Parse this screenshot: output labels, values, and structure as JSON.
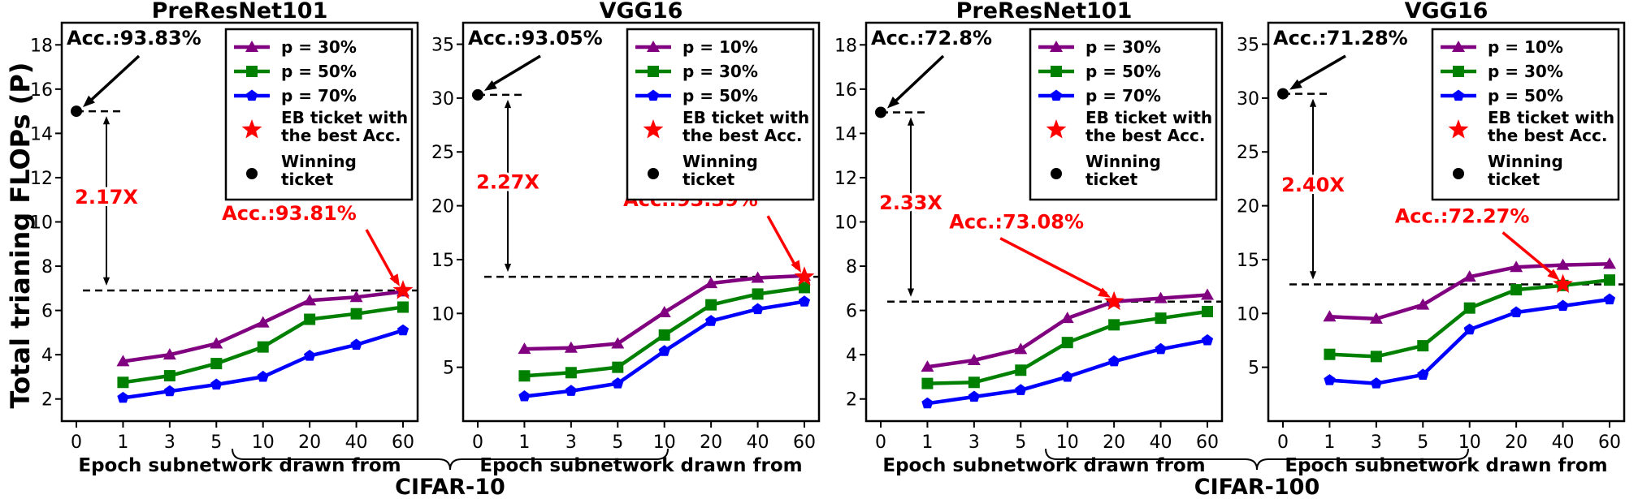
{
  "figure": {
    "ylabel": "Total trianing FLOPs (P)",
    "groups": [
      {
        "label": "CIFAR-10"
      },
      {
        "label": "CIFAR-100"
      }
    ]
  },
  "chart_data": [
    {
      "type": "line",
      "title": "PreResNet101",
      "xlabel": "Epoch subnetwork drawn from",
      "ylabel": "Total trianing FLOPs (P)",
      "categories": [
        "0",
        "1",
        "3",
        "5",
        "10",
        "20",
        "40",
        "60"
      ],
      "ylim": [
        1,
        19
      ],
      "yticks": [
        2,
        4,
        6,
        8,
        10,
        12,
        14,
        16,
        18
      ],
      "series": [
        {
          "name": "p = 30%",
          "color": "#800080",
          "marker": "triangle",
          "values": [
            null,
            3.7,
            4.0,
            4.5,
            5.45,
            6.45,
            6.6,
            6.85
          ]
        },
        {
          "name": "p = 50%",
          "color": "#008000",
          "marker": "square",
          "values": [
            null,
            2.75,
            3.05,
            3.6,
            4.35,
            5.6,
            5.85,
            6.15
          ]
        },
        {
          "name": "p = 70%",
          "color": "#0000ff",
          "marker": "pentagon",
          "values": [
            null,
            2.05,
            2.35,
            2.65,
            3.0,
            3.95,
            4.45,
            5.1
          ]
        }
      ],
      "legend_extra": [
        {
          "label": "EB ticket with the best Acc.",
          "marker": "star",
          "color": "#ff0000"
        },
        {
          "label": "Winning ticket",
          "marker": "circle",
          "color": "#000000"
        }
      ],
      "winning_ticket": {
        "x": "0",
        "y": 15.0,
        "label": "Acc.:93.83%"
      },
      "eb_ticket": {
        "x": "60",
        "y": 6.9,
        "label": "Acc.:93.81%"
      },
      "ratio_label": "2.17X",
      "legend_position": "top-right"
    },
    {
      "type": "line",
      "title": "VGG16",
      "xlabel": "Epoch subnetwork drawn from",
      "categories": [
        "0",
        "1",
        "3",
        "5",
        "10",
        "20",
        "40",
        "60"
      ],
      "ylim": [
        0,
        37
      ],
      "yticks": [
        5,
        10,
        15,
        20,
        25,
        30,
        35
      ],
      "series": [
        {
          "name": "p = 10%",
          "color": "#800080",
          "marker": "triangle",
          "values": [
            null,
            6.7,
            6.8,
            7.2,
            10.1,
            12.8,
            13.3,
            13.5
          ]
        },
        {
          "name": "p = 30%",
          "color": "#008000",
          "marker": "square",
          "values": [
            null,
            4.2,
            4.5,
            5.0,
            8.0,
            10.8,
            11.8,
            12.4
          ]
        },
        {
          "name": "p = 50%",
          "color": "#0000ff",
          "marker": "pentagon",
          "values": [
            null,
            2.3,
            2.8,
            3.5,
            6.5,
            9.3,
            10.4,
            11.1
          ]
        }
      ],
      "legend_extra": [
        {
          "label": "EB ticket with the best Acc.",
          "marker": "star",
          "color": "#ff0000"
        },
        {
          "label": "Winning ticket",
          "marker": "circle",
          "color": "#000000"
        }
      ],
      "winning_ticket": {
        "x": "0",
        "y": 30.3,
        "label": "Acc.:93.05%"
      },
      "eb_ticket": {
        "x": "60",
        "y": 13.4,
        "label": "Acc.:93.39%"
      },
      "ratio_label": "2.27X",
      "legend_position": "top-right"
    },
    {
      "type": "line",
      "title": "PreResNet101",
      "xlabel": "Epoch subnetwork drawn from",
      "categories": [
        "0",
        "1",
        "3",
        "5",
        "10",
        "20",
        "40",
        "60"
      ],
      "ylim": [
        1,
        19
      ],
      "yticks": [
        2,
        4,
        6,
        8,
        10,
        12,
        14,
        16,
        18
      ],
      "series": [
        {
          "name": "p = 30%",
          "color": "#800080",
          "marker": "triangle",
          "values": [
            null,
            3.45,
            3.75,
            4.25,
            5.65,
            6.4,
            6.55,
            6.7
          ]
        },
        {
          "name": "p = 50%",
          "color": "#008000",
          "marker": "square",
          "values": [
            null,
            2.7,
            2.75,
            3.3,
            4.55,
            5.35,
            5.65,
            5.95
          ]
        },
        {
          "name": "p = 70%",
          "color": "#0000ff",
          "marker": "pentagon",
          "values": [
            null,
            1.8,
            2.1,
            2.4,
            3.0,
            3.7,
            4.25,
            4.65
          ]
        }
      ],
      "legend_extra": [
        {
          "label": "EB ticket with the best Acc.",
          "marker": "star",
          "color": "#ff0000"
        },
        {
          "label": "Winning ticket",
          "marker": "circle",
          "color": "#000000"
        }
      ],
      "winning_ticket": {
        "x": "0",
        "y": 14.95,
        "label": "Acc.:72.8%"
      },
      "eb_ticket": {
        "x": "20",
        "y": 6.4,
        "label": "Acc.:73.08%"
      },
      "ratio_label": "2.33X",
      "legend_position": "top-right"
    },
    {
      "type": "line",
      "title": "VGG16",
      "xlabel": "Epoch subnetwork drawn from",
      "categories": [
        "0",
        "1",
        "3",
        "5",
        "10",
        "20",
        "40",
        "60"
      ],
      "ylim": [
        0,
        37
      ],
      "yticks": [
        5,
        10,
        15,
        20,
        25,
        30,
        35
      ],
      "series": [
        {
          "name": "p = 10%",
          "color": "#800080",
          "marker": "triangle",
          "values": [
            null,
            9.7,
            9.5,
            10.8,
            13.4,
            14.3,
            14.5,
            14.6
          ]
        },
        {
          "name": "p = 30%",
          "color": "#008000",
          "marker": "square",
          "values": [
            null,
            6.2,
            6.0,
            7.0,
            10.5,
            12.2,
            12.6,
            13.1
          ]
        },
        {
          "name": "p = 50%",
          "color": "#0000ff",
          "marker": "pentagon",
          "values": [
            null,
            3.8,
            3.5,
            4.3,
            8.5,
            10.1,
            10.7,
            11.3
          ]
        }
      ],
      "legend_extra": [
        {
          "label": "EB ticket with the best Acc.",
          "marker": "star",
          "color": "#ff0000"
        },
        {
          "label": "Winning ticket",
          "marker": "circle",
          "color": "#000000"
        }
      ],
      "winning_ticket": {
        "x": "0",
        "y": 30.4,
        "label": "Acc.:71.28%"
      },
      "eb_ticket": {
        "x": "40",
        "y": 12.7,
        "label": "Acc.:72.27%"
      },
      "ratio_label": "2.40X",
      "legend_position": "top-right"
    }
  ]
}
